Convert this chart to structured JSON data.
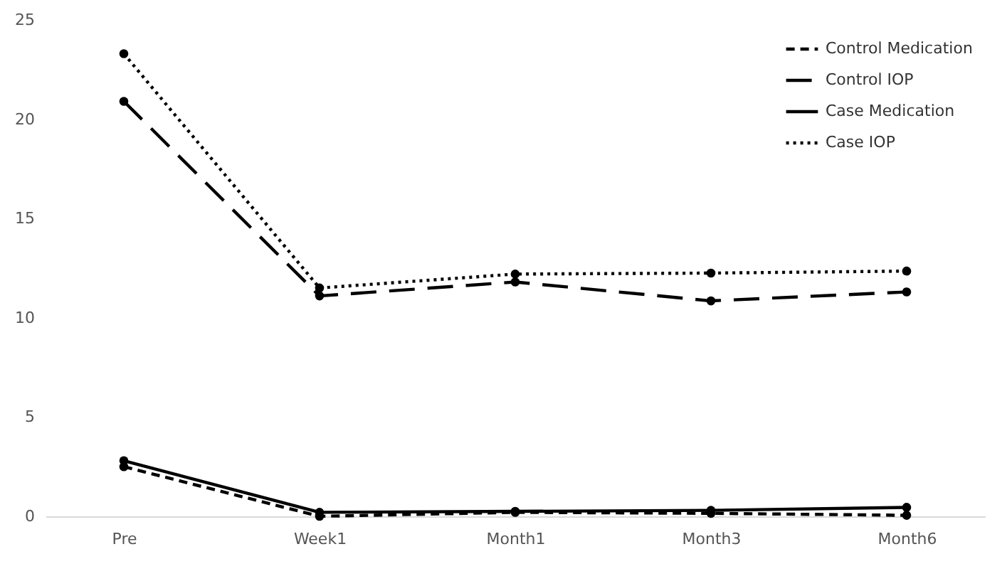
{
  "chart_data": {
    "type": "line",
    "categories": [
      "Pre",
      "Week1",
      "Month1",
      "Month3",
      "Month6"
    ],
    "series": [
      {
        "name": "Control Medication",
        "color": "#000000",
        "line_style": "dashed",
        "values": [
          2.5,
          0.0,
          0.2,
          0.15,
          0.05
        ]
      },
      {
        "name": "Control IOP",
        "color": "#000000",
        "line_style": "dashed",
        "values": [
          20.9,
          11.1,
          11.8,
          10.85,
          11.3
        ]
      },
      {
        "name": "Case Medication",
        "color": "#000000",
        "line_style": "solid",
        "values": [
          2.8,
          0.2,
          0.25,
          0.3,
          0.45
        ]
      },
      {
        "name": "Case IOP",
        "color": "#000000",
        "line_style": "dotted",
        "values": [
          23.3,
          11.5,
          12.2,
          12.25,
          12.35
        ]
      }
    ],
    "ylim": [
      0,
      25
    ],
    "yticks": [
      0,
      5,
      10,
      15,
      20,
      25
    ],
    "grid": false,
    "legend": "top right",
    "marker": "circle"
  }
}
